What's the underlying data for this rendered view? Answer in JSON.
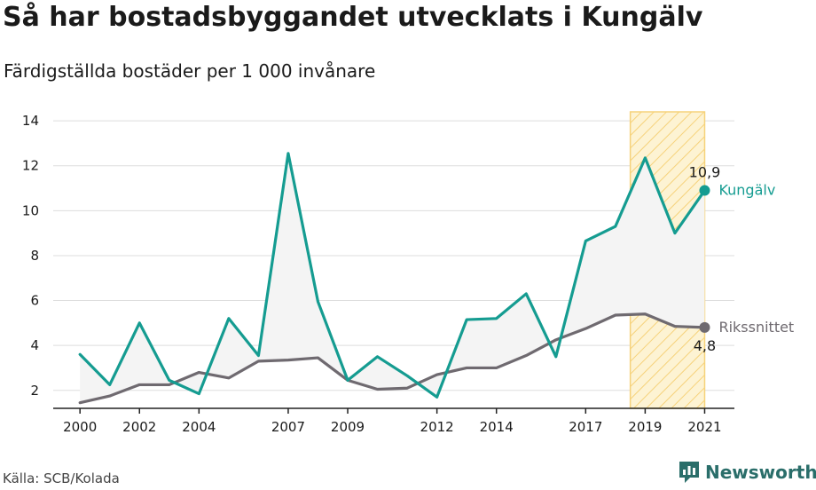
{
  "header": {
    "title": "Så har bostadsbyggandet utvecklats i Kungälv",
    "subtitle": "Färdigställda bostäder per 1 000 invånare"
  },
  "footer": {
    "source": "Källa: SCB/Kolada",
    "brand": "Newsworthy"
  },
  "colors": {
    "kungalv": "#159c91",
    "riks": "#6f6a70",
    "highlight_fill": "#fdf3d3",
    "highlight_stroke": "#f6d27a",
    "area_fill": "#f4f4f4",
    "grid": "#dddddd",
    "brand": "#2a6e6a"
  },
  "chart_data": {
    "type": "line",
    "x": [
      2000,
      2001,
      2002,
      2003,
      2004,
      2005,
      2006,
      2007,
      2008,
      2009,
      2010,
      2011,
      2012,
      2013,
      2014,
      2015,
      2016,
      2017,
      2018,
      2019,
      2020,
      2021
    ],
    "xticks": [
      2000,
      2002,
      2004,
      2007,
      2009,
      2012,
      2014,
      2017,
      2019,
      2021
    ],
    "yticks": [
      2,
      4,
      6,
      8,
      10,
      12,
      14
    ],
    "ylim": [
      1.2,
      14.4
    ],
    "xlim": [
      1999.1,
      2022
    ],
    "highlight_range": [
      2018.5,
      2021
    ],
    "series": [
      {
        "key": "kungalv",
        "name": "Kungälv",
        "end_label": "10,9",
        "values": [
          3.6,
          2.25,
          5.0,
          2.45,
          1.85,
          5.2,
          3.55,
          12.55,
          5.95,
          2.45,
          3.5,
          2.65,
          1.7,
          5.15,
          5.2,
          6.3,
          3.5,
          8.65,
          9.3,
          12.35,
          9.0,
          10.9
        ]
      },
      {
        "key": "riks",
        "name": "Rikssnittet",
        "end_label": "4,8",
        "values": [
          1.45,
          1.75,
          2.25,
          2.25,
          2.8,
          2.55,
          3.3,
          3.35,
          3.45,
          2.45,
          2.05,
          2.1,
          2.7,
          3.0,
          3.0,
          3.55,
          4.25,
          4.75,
          5.35,
          5.4,
          4.85,
          4.8
        ]
      }
    ]
  }
}
